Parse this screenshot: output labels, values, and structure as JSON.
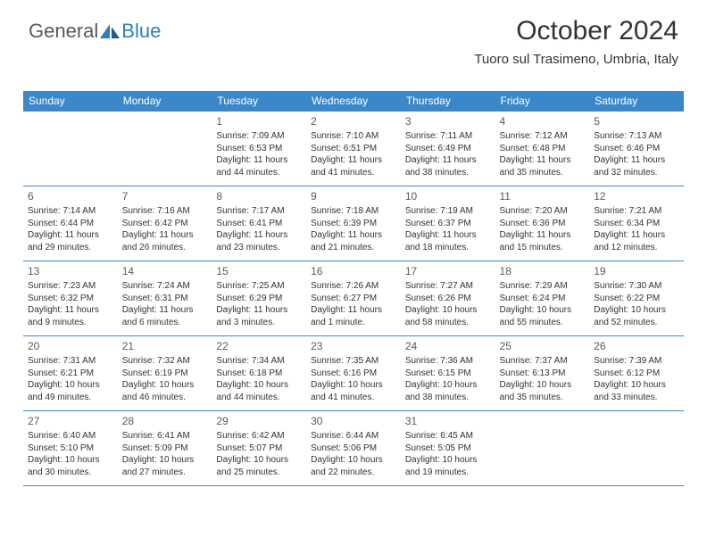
{
  "brand": {
    "part1": "General",
    "part2": "Blue"
  },
  "title": "October 2024",
  "location": "Tuoro sul Trasimeno, Umbria, Italy",
  "colors": {
    "header_bg": "#3b87c8",
    "accent": "#2b7fbf",
    "text": "#333333"
  },
  "weekdays": [
    "Sunday",
    "Monday",
    "Tuesday",
    "Wednesday",
    "Thursday",
    "Friday",
    "Saturday"
  ],
  "grid": [
    [
      null,
      null,
      {
        "n": "1",
        "sr": "Sunrise: 7:09 AM",
        "ss": "Sunset: 6:53 PM",
        "d1": "Daylight: 11 hours",
        "d2": "and 44 minutes."
      },
      {
        "n": "2",
        "sr": "Sunrise: 7:10 AM",
        "ss": "Sunset: 6:51 PM",
        "d1": "Daylight: 11 hours",
        "d2": "and 41 minutes."
      },
      {
        "n": "3",
        "sr": "Sunrise: 7:11 AM",
        "ss": "Sunset: 6:49 PM",
        "d1": "Daylight: 11 hours",
        "d2": "and 38 minutes."
      },
      {
        "n": "4",
        "sr": "Sunrise: 7:12 AM",
        "ss": "Sunset: 6:48 PM",
        "d1": "Daylight: 11 hours",
        "d2": "and 35 minutes."
      },
      {
        "n": "5",
        "sr": "Sunrise: 7:13 AM",
        "ss": "Sunset: 6:46 PM",
        "d1": "Daylight: 11 hours",
        "d2": "and 32 minutes."
      }
    ],
    [
      {
        "n": "6",
        "sr": "Sunrise: 7:14 AM",
        "ss": "Sunset: 6:44 PM",
        "d1": "Daylight: 11 hours",
        "d2": "and 29 minutes."
      },
      {
        "n": "7",
        "sr": "Sunrise: 7:16 AM",
        "ss": "Sunset: 6:42 PM",
        "d1": "Daylight: 11 hours",
        "d2": "and 26 minutes."
      },
      {
        "n": "8",
        "sr": "Sunrise: 7:17 AM",
        "ss": "Sunset: 6:41 PM",
        "d1": "Daylight: 11 hours",
        "d2": "and 23 minutes."
      },
      {
        "n": "9",
        "sr": "Sunrise: 7:18 AM",
        "ss": "Sunset: 6:39 PM",
        "d1": "Daylight: 11 hours",
        "d2": "and 21 minutes."
      },
      {
        "n": "10",
        "sr": "Sunrise: 7:19 AM",
        "ss": "Sunset: 6:37 PM",
        "d1": "Daylight: 11 hours",
        "d2": "and 18 minutes."
      },
      {
        "n": "11",
        "sr": "Sunrise: 7:20 AM",
        "ss": "Sunset: 6:36 PM",
        "d1": "Daylight: 11 hours",
        "d2": "and 15 minutes."
      },
      {
        "n": "12",
        "sr": "Sunrise: 7:21 AM",
        "ss": "Sunset: 6:34 PM",
        "d1": "Daylight: 11 hours",
        "d2": "and 12 minutes."
      }
    ],
    [
      {
        "n": "13",
        "sr": "Sunrise: 7:23 AM",
        "ss": "Sunset: 6:32 PM",
        "d1": "Daylight: 11 hours",
        "d2": "and 9 minutes."
      },
      {
        "n": "14",
        "sr": "Sunrise: 7:24 AM",
        "ss": "Sunset: 6:31 PM",
        "d1": "Daylight: 11 hours",
        "d2": "and 6 minutes."
      },
      {
        "n": "15",
        "sr": "Sunrise: 7:25 AM",
        "ss": "Sunset: 6:29 PM",
        "d1": "Daylight: 11 hours",
        "d2": "and 3 minutes."
      },
      {
        "n": "16",
        "sr": "Sunrise: 7:26 AM",
        "ss": "Sunset: 6:27 PM",
        "d1": "Daylight: 11 hours",
        "d2": "and 1 minute."
      },
      {
        "n": "17",
        "sr": "Sunrise: 7:27 AM",
        "ss": "Sunset: 6:26 PM",
        "d1": "Daylight: 10 hours",
        "d2": "and 58 minutes."
      },
      {
        "n": "18",
        "sr": "Sunrise: 7:29 AM",
        "ss": "Sunset: 6:24 PM",
        "d1": "Daylight: 10 hours",
        "d2": "and 55 minutes."
      },
      {
        "n": "19",
        "sr": "Sunrise: 7:30 AM",
        "ss": "Sunset: 6:22 PM",
        "d1": "Daylight: 10 hours",
        "d2": "and 52 minutes."
      }
    ],
    [
      {
        "n": "20",
        "sr": "Sunrise: 7:31 AM",
        "ss": "Sunset: 6:21 PM",
        "d1": "Daylight: 10 hours",
        "d2": "and 49 minutes."
      },
      {
        "n": "21",
        "sr": "Sunrise: 7:32 AM",
        "ss": "Sunset: 6:19 PM",
        "d1": "Daylight: 10 hours",
        "d2": "and 46 minutes."
      },
      {
        "n": "22",
        "sr": "Sunrise: 7:34 AM",
        "ss": "Sunset: 6:18 PM",
        "d1": "Daylight: 10 hours",
        "d2": "and 44 minutes."
      },
      {
        "n": "23",
        "sr": "Sunrise: 7:35 AM",
        "ss": "Sunset: 6:16 PM",
        "d1": "Daylight: 10 hours",
        "d2": "and 41 minutes."
      },
      {
        "n": "24",
        "sr": "Sunrise: 7:36 AM",
        "ss": "Sunset: 6:15 PM",
        "d1": "Daylight: 10 hours",
        "d2": "and 38 minutes."
      },
      {
        "n": "25",
        "sr": "Sunrise: 7:37 AM",
        "ss": "Sunset: 6:13 PM",
        "d1": "Daylight: 10 hours",
        "d2": "and 35 minutes."
      },
      {
        "n": "26",
        "sr": "Sunrise: 7:39 AM",
        "ss": "Sunset: 6:12 PM",
        "d1": "Daylight: 10 hours",
        "d2": "and 33 minutes."
      }
    ],
    [
      {
        "n": "27",
        "sr": "Sunrise: 6:40 AM",
        "ss": "Sunset: 5:10 PM",
        "d1": "Daylight: 10 hours",
        "d2": "and 30 minutes."
      },
      {
        "n": "28",
        "sr": "Sunrise: 6:41 AM",
        "ss": "Sunset: 5:09 PM",
        "d1": "Daylight: 10 hours",
        "d2": "and 27 minutes."
      },
      {
        "n": "29",
        "sr": "Sunrise: 6:42 AM",
        "ss": "Sunset: 5:07 PM",
        "d1": "Daylight: 10 hours",
        "d2": "and 25 minutes."
      },
      {
        "n": "30",
        "sr": "Sunrise: 6:44 AM",
        "ss": "Sunset: 5:06 PM",
        "d1": "Daylight: 10 hours",
        "d2": "and 22 minutes."
      },
      {
        "n": "31",
        "sr": "Sunrise: 6:45 AM",
        "ss": "Sunset: 5:05 PM",
        "d1": "Daylight: 10 hours",
        "d2": "and 19 minutes."
      },
      null,
      null
    ]
  ]
}
